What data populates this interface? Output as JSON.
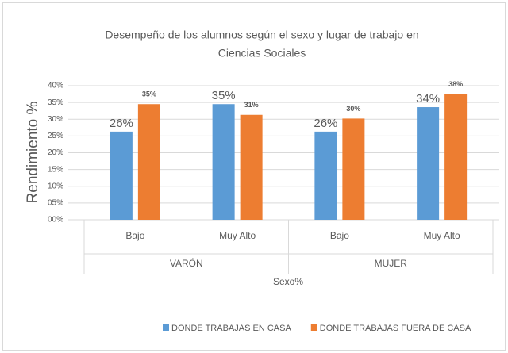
{
  "chart_data": {
    "type": "bar",
    "title": [
      "Desempeño de los alumnos según el sexo y lugar de trabajo en",
      "Ciencias Sociales"
    ],
    "y_label": "Rendimiento %",
    "x_label": "Sexo%",
    "categories": [
      "Bajo",
      "Muy Alto",
      "Bajo",
      "Muy Alto"
    ],
    "groups": [
      "VARÓN",
      "MUJER"
    ],
    "series": [
      {
        "name": "DONDE TRABAJAS EN CASA",
        "color": "#5b9bd5",
        "values": [
          26.3,
          34.5,
          26.3,
          33.6
        ],
        "value_labels": [
          "26%",
          "35%",
          "26%",
          "34%"
        ]
      },
      {
        "name": "DONDE TRABAJAS FUERA DE CASA",
        "color": "#ed7d31",
        "values": [
          34.5,
          31.3,
          30.2,
          37.5
        ],
        "value_labels": [
          "35%",
          "31%",
          "30%",
          "38%"
        ]
      }
    ],
    "ylim": [
      0,
      40
    ],
    "yticks": [
      {
        "value": 0,
        "label": "00%"
      },
      {
        "value": 5,
        "label": "05%"
      },
      {
        "value": 10,
        "label": "10%"
      },
      {
        "value": 15,
        "label": "15%"
      },
      {
        "value": 20,
        "label": "20%"
      },
      {
        "value": 25,
        "label": "25%"
      },
      {
        "value": 30,
        "label": "30%"
      },
      {
        "value": 35,
        "label": "35%"
      },
      {
        "value": 40,
        "label": "40%"
      }
    ],
    "grid": true,
    "legend": "bottom"
  }
}
